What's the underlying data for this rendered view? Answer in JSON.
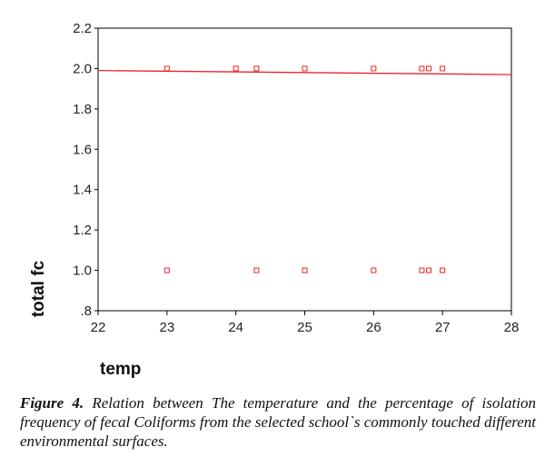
{
  "chart_data": {
    "type": "scatter",
    "title": "",
    "xlabel": "temp",
    "ylabel": "total fc",
    "xlim": [
      22,
      28
    ],
    "ylim": [
      0.8,
      2.2
    ],
    "x_ticks": [
      22,
      23,
      24,
      25,
      26,
      27,
      28
    ],
    "x_tick_labels": [
      "22",
      "23",
      "24",
      "25",
      "26",
      "27",
      "28"
    ],
    "y_ticks": [
      0.8,
      1.0,
      1.2,
      1.4,
      1.6,
      1.8,
      2.0,
      2.2
    ],
    "y_tick_labels": [
      ".8",
      "1.0",
      "1.2",
      "1.4",
      "1.6",
      "1.8",
      "2.0",
      "2.2"
    ],
    "grid": false,
    "series": [
      {
        "marker": "open-square",
        "color": "#e8262a",
        "points": [
          {
            "x": 23.0,
            "y": 2.0
          },
          {
            "x": 24.0,
            "y": 2.0
          },
          {
            "x": 24.3,
            "y": 2.0
          },
          {
            "x": 25.0,
            "y": 2.0
          },
          {
            "x": 26.0,
            "y": 2.0
          },
          {
            "x": 26.7,
            "y": 2.0
          },
          {
            "x": 26.8,
            "y": 2.0
          },
          {
            "x": 27.0,
            "y": 2.0
          },
          {
            "x": 23.0,
            "y": 1.0
          },
          {
            "x": 24.3,
            "y": 1.0
          },
          {
            "x": 25.0,
            "y": 1.0
          },
          {
            "x": 26.0,
            "y": 1.0
          },
          {
            "x": 26.7,
            "y": 1.0
          },
          {
            "x": 26.8,
            "y": 1.0
          },
          {
            "x": 27.0,
            "y": 1.0
          }
        ]
      }
    ],
    "fit_line": {
      "color": "#e8262a",
      "points": [
        [
          22.0,
          1.99
        ],
        [
          28.0,
          1.97
        ]
      ]
    }
  },
  "caption": {
    "label": "Figure 4.",
    "text": " Relation between The temperature and the percentage of isolation frequency of fecal Coliforms from the selected school`s commonly touched different environmental surfaces."
  }
}
